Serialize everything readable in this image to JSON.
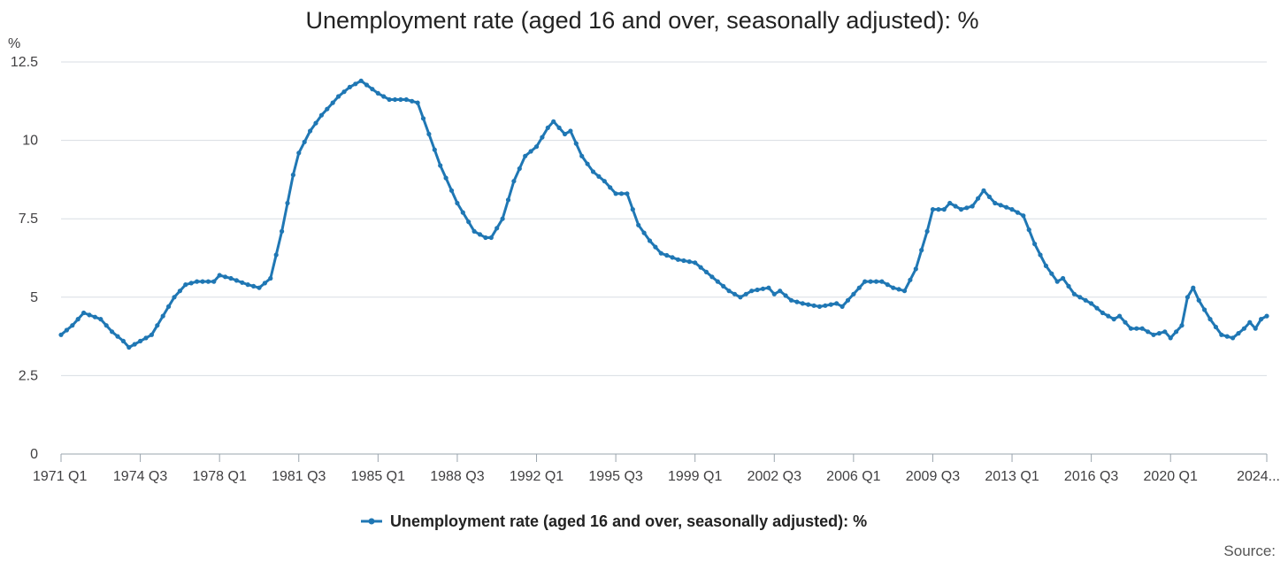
{
  "chart_data": {
    "type": "line",
    "title": "Unemployment rate (aged 16 and over, seasonally adjusted): %",
    "y_unit_label": "%",
    "ylim": [
      0,
      12.5
    ],
    "y_ticks": [
      {
        "value": 0,
        "label": "0"
      },
      {
        "value": 2.5,
        "label": "2.5"
      },
      {
        "value": 5,
        "label": "5"
      },
      {
        "value": 7.5,
        "label": "7.5"
      },
      {
        "value": 10,
        "label": "10"
      },
      {
        "value": 12.5,
        "label": "12.5"
      }
    ],
    "x_start": "1971 Q1",
    "x_end": "2024 Q2",
    "x_ticks": [
      {
        "label": "1971 Q1",
        "period": "1971 Q1"
      },
      {
        "label": "1974 Q3",
        "period": "1974 Q3"
      },
      {
        "label": "1978 Q1",
        "period": "1978 Q1"
      },
      {
        "label": "1981 Q3",
        "period": "1981 Q3"
      },
      {
        "label": "1985 Q1",
        "period": "1985 Q1"
      },
      {
        "label": "1988 Q3",
        "period": "1988 Q3"
      },
      {
        "label": "1992 Q1",
        "period": "1992 Q1"
      },
      {
        "label": "1995 Q3",
        "period": "1995 Q3"
      },
      {
        "label": "1999 Q1",
        "period": "1999 Q1"
      },
      {
        "label": "2002 Q3",
        "period": "2002 Q3"
      },
      {
        "label": "2006 Q1",
        "period": "2006 Q1"
      },
      {
        "label": "2009 Q3",
        "period": "2009 Q3"
      },
      {
        "label": "2013 Q1",
        "period": "2013 Q1"
      },
      {
        "label": "2016 Q3",
        "period": "2016 Q3"
      },
      {
        "label": "2020 Q1",
        "period": "2020 Q1"
      },
      {
        "label": "2024...",
        "period": "2024 Q2"
      }
    ],
    "grid": true,
    "legend_position": "bottom-center",
    "source_label": "Source:",
    "series": [
      {
        "name": "Unemployment rate (aged 16 and over, seasonally adjusted): %",
        "color": "#1f77b4",
        "anchors": [
          [
            "1971 Q1",
            3.8
          ],
          [
            "1971 Q3",
            4.1
          ],
          [
            "1972 Q1",
            4.5
          ],
          [
            "1972 Q4",
            4.3
          ],
          [
            "1973 Q2",
            3.9
          ],
          [
            "1973 Q4",
            3.6
          ],
          [
            "1974 Q1",
            3.4
          ],
          [
            "1974 Q3",
            3.6
          ],
          [
            "1975 Q1",
            3.8
          ],
          [
            "1975 Q3",
            4.4
          ],
          [
            "1976 Q1",
            5.0
          ],
          [
            "1976 Q3",
            5.4
          ],
          [
            "1977 Q1",
            5.5
          ],
          [
            "1977 Q4",
            5.5
          ],
          [
            "1978 Q1",
            5.7
          ],
          [
            "1978 Q3",
            5.6
          ],
          [
            "1979 Q2",
            5.4
          ],
          [
            "1979 Q4",
            5.3
          ],
          [
            "1980 Q2",
            5.6
          ],
          [
            "1980 Q4",
            7.1
          ],
          [
            "1981 Q2",
            8.9
          ],
          [
            "1981 Q3",
            9.6
          ],
          [
            "1982 Q1",
            10.3
          ],
          [
            "1982 Q3",
            10.8
          ],
          [
            "1983 Q2",
            11.4
          ],
          [
            "1983 Q4",
            11.7
          ],
          [
            "1984 Q2",
            11.9
          ],
          [
            "1985 Q1",
            11.5
          ],
          [
            "1985 Q3",
            11.3
          ],
          [
            "1986 Q2",
            11.3
          ],
          [
            "1986 Q4",
            11.2
          ],
          [
            "1987 Q1",
            10.7
          ],
          [
            "1987 Q4",
            9.2
          ],
          [
            "1988 Q3",
            8.0
          ],
          [
            "1989 Q2",
            7.1
          ],
          [
            "1989 Q4",
            6.9
          ],
          [
            "1990 Q1",
            6.9
          ],
          [
            "1990 Q3",
            7.5
          ],
          [
            "1991 Q1",
            8.7
          ],
          [
            "1991 Q3",
            9.5
          ],
          [
            "1992 Q1",
            9.8
          ],
          [
            "1992 Q3",
            10.4
          ],
          [
            "1992 Q4",
            10.6
          ],
          [
            "1993 Q2",
            10.2
          ],
          [
            "1993 Q3",
            10.3
          ],
          [
            "1994 Q1",
            9.5
          ],
          [
            "1994 Q3",
            9.0
          ],
          [
            "1995 Q1",
            8.7
          ],
          [
            "1995 Q3",
            8.3
          ],
          [
            "1996 Q1",
            8.3
          ],
          [
            "1996 Q3",
            7.3
          ],
          [
            "1997 Q1",
            6.8
          ],
          [
            "1997 Q3",
            6.4
          ],
          [
            "1998 Q2",
            6.2
          ],
          [
            "1999 Q1",
            6.1
          ],
          [
            "1999 Q3",
            5.8
          ],
          [
            "2000 Q1",
            5.5
          ],
          [
            "2000 Q3",
            5.2
          ],
          [
            "2001 Q1",
            5.0
          ],
          [
            "2001 Q3",
            5.2
          ],
          [
            "2002 Q2",
            5.3
          ],
          [
            "2002 Q3",
            5.1
          ],
          [
            "2002 Q4",
            5.2
          ],
          [
            "2003 Q2",
            4.9
          ],
          [
            "2003 Q4",
            4.8
          ],
          [
            "2004 Q3",
            4.7
          ],
          [
            "2005 Q2",
            4.8
          ],
          [
            "2005 Q3",
            4.7
          ],
          [
            "2006 Q1",
            5.1
          ],
          [
            "2006 Q3",
            5.5
          ],
          [
            "2007 Q2",
            5.5
          ],
          [
            "2007 Q4",
            5.3
          ],
          [
            "2008 Q2",
            5.2
          ],
          [
            "2008 Q4",
            5.9
          ],
          [
            "2009 Q2",
            7.1
          ],
          [
            "2009 Q3",
            7.8
          ],
          [
            "2010 Q1",
            7.8
          ],
          [
            "2010 Q2",
            8.0
          ],
          [
            "2010 Q4",
            7.8
          ],
          [
            "2011 Q2",
            7.9
          ],
          [
            "2011 Q4",
            8.4
          ],
          [
            "2012 Q2",
            8.0
          ],
          [
            "2013 Q1",
            7.8
          ],
          [
            "2013 Q3",
            7.6
          ],
          [
            "2014 Q1",
            6.7
          ],
          [
            "2014 Q3",
            6.0
          ],
          [
            "2015 Q1",
            5.5
          ],
          [
            "2015 Q2",
            5.6
          ],
          [
            "2015 Q4",
            5.1
          ],
          [
            "2016 Q2",
            4.9
          ],
          [
            "2016 Q3",
            4.8
          ],
          [
            "2017 Q1",
            4.5
          ],
          [
            "2017 Q3",
            4.3
          ],
          [
            "2017 Q4",
            4.4
          ],
          [
            "2018 Q2",
            4.0
          ],
          [
            "2018 Q4",
            4.0
          ],
          [
            "2019 Q2",
            3.8
          ],
          [
            "2019 Q4",
            3.9
          ],
          [
            "2020 Q1",
            3.7
          ],
          [
            "2020 Q3",
            4.1
          ],
          [
            "2020 Q4",
            5.0
          ],
          [
            "2021 Q1",
            5.3
          ],
          [
            "2021 Q2",
            4.9
          ],
          [
            "2021 Q4",
            4.3
          ],
          [
            "2022 Q2",
            3.8
          ],
          [
            "2022 Q4",
            3.7
          ],
          [
            "2023 Q2",
            4.0
          ],
          [
            "2023 Q3",
            4.2
          ],
          [
            "2023 Q4",
            4.0
          ],
          [
            "2024 Q1",
            4.3
          ],
          [
            "2024 Q2",
            4.4
          ]
        ]
      }
    ]
  }
}
